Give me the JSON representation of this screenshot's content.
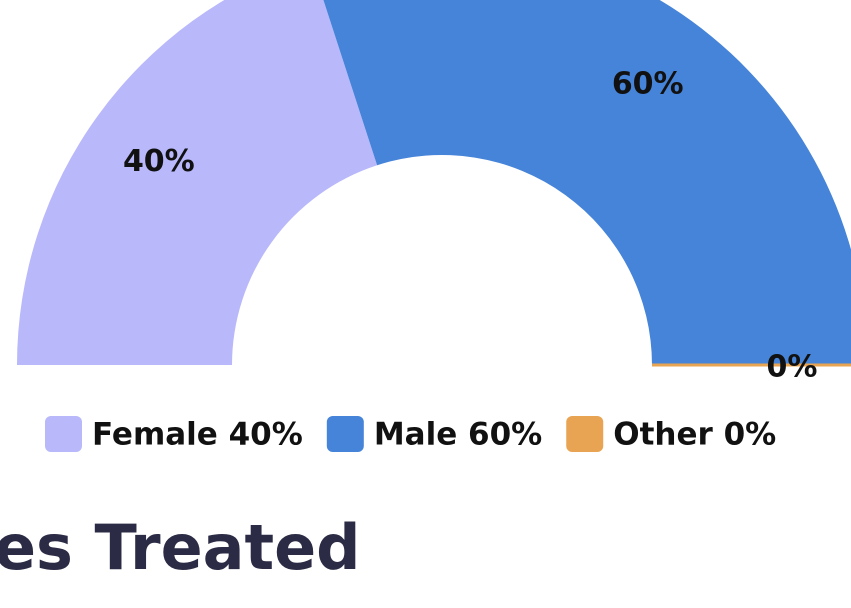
{
  "chart_data": {
    "type": "pie",
    "categories": [
      "Female 40%",
      "Male 60%",
      "Other 0%"
    ],
    "values": [
      40,
      60,
      0
    ],
    "value_labels": [
      "40%",
      "60%",
      "0%"
    ],
    "colors": [
      "#b8b8fb",
      "#4584d8",
      "#e8a452"
    ],
    "legend": "bottom"
  },
  "heading": "es Treated"
}
